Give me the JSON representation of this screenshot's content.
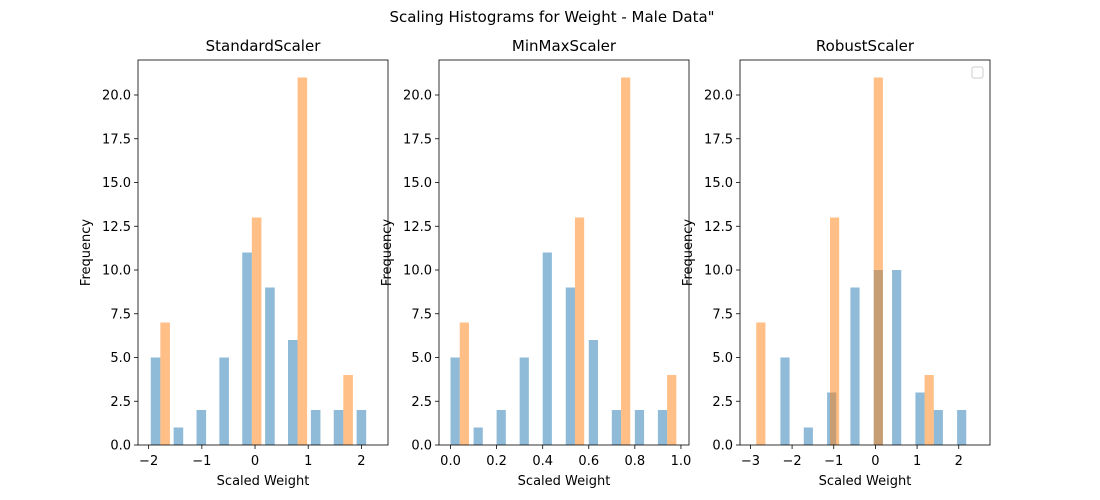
{
  "figure": {
    "suptitle": "Scaling Histograms for Weight - Male Data\""
  },
  "chart_data": [
    {
      "type": "bar",
      "title": "StandardScaler",
      "xlabel": "Scaled Weight",
      "ylabel": "Frequency",
      "xlim": [
        -2.2,
        2.5
      ],
      "ylim": [
        0,
        22
      ],
      "xticks": [
        -2,
        -1,
        0,
        1,
        2
      ],
      "xtick_labels": [
        "−2",
        "−1",
        "0",
        "1",
        "2"
      ],
      "yticks": [
        0,
        2.5,
        5,
        7.5,
        10,
        12.5,
        15,
        17.5,
        20
      ],
      "ytick_labels": [
        "0.0",
        "2.5",
        "5.0",
        "7.5",
        "10.0",
        "12.5",
        "15.0",
        "17.5",
        "20.0"
      ],
      "legend": false,
      "series": [
        {
          "color": "#1f77b4",
          "opacity": 0.5,
          "bars": [
            [
              -1.96,
              -1.78,
              5
            ],
            [
              -1.53,
              -1.35,
              1
            ],
            [
              -1.1,
              -0.92,
              2
            ],
            [
              -0.67,
              -0.49,
              5
            ],
            [
              -0.24,
              -0.06,
              11
            ],
            [
              0.19,
              0.37,
              9
            ],
            [
              0.62,
              0.8,
              6
            ],
            [
              1.05,
              1.23,
              2
            ],
            [
              1.48,
              1.66,
              2
            ],
            [
              1.91,
              2.09,
              2
            ]
          ]
        },
        {
          "color": "#ff7f0e",
          "opacity": 0.5,
          "bars": [
            [
              -1.78,
              -1.6,
              7
            ],
            [
              -0.06,
              0.12,
              13
            ],
            [
              0.8,
              0.98,
              21
            ],
            [
              1.66,
              1.84,
              4
            ]
          ]
        }
      ]
    },
    {
      "type": "bar",
      "title": "MinMaxScaler",
      "xlabel": "Scaled Weight",
      "ylabel": "Frequency",
      "xlim": [
        -0.05,
        1.035
      ],
      "ylim": [
        0,
        22
      ],
      "xticks": [
        0.0,
        0.2,
        0.4,
        0.6,
        0.8,
        1.0
      ],
      "xtick_labels": [
        "0.0",
        "0.2",
        "0.4",
        "0.6",
        "0.8",
        "1.0"
      ],
      "yticks": [
        0,
        2.5,
        5,
        7.5,
        10,
        12.5,
        15,
        17.5,
        20
      ],
      "ytick_labels": [
        "0.0",
        "2.5",
        "5.0",
        "7.5",
        "10.0",
        "12.5",
        "15.0",
        "17.5",
        "20.0"
      ],
      "legend": false,
      "series": [
        {
          "color": "#1f77b4",
          "opacity": 0.5,
          "bars": [
            [
              0.0,
              0.04,
              5
            ],
            [
              0.1,
              0.14,
              1
            ],
            [
              0.2,
              0.24,
              2
            ],
            [
              0.3,
              0.34,
              5
            ],
            [
              0.4,
              0.44,
              11
            ],
            [
              0.5,
              0.54,
              9
            ],
            [
              0.6,
              0.64,
              6
            ],
            [
              0.7,
              0.74,
              2
            ],
            [
              0.8,
              0.84,
              2
            ],
            [
              0.9,
              0.94,
              2
            ]
          ]
        },
        {
          "color": "#ff7f0e",
          "opacity": 0.5,
          "bars": [
            [
              0.04,
              0.08,
              7
            ],
            [
              0.54,
              0.58,
              13
            ],
            [
              0.74,
              0.78,
              21
            ],
            [
              0.94,
              0.98,
              4
            ]
          ]
        }
      ]
    },
    {
      "type": "bar",
      "title": "RobustScaler",
      "xlabel": "Scaled Weight",
      "ylabel": "Frequency",
      "xlim": [
        -3.25,
        2.75
      ],
      "ylim": [
        0,
        22
      ],
      "xticks": [
        -3,
        -2,
        -1,
        0,
        1,
        2
      ],
      "xtick_labels": [
        "−3",
        "−2",
        "−1",
        "0",
        "1",
        "2"
      ],
      "yticks": [
        0,
        2.5,
        5,
        7.5,
        10,
        12.5,
        15,
        17.5,
        20
      ],
      "ytick_labels": [
        "0.0",
        "2.5",
        "5.0",
        "7.5",
        "10.0",
        "12.5",
        "15.0",
        "17.5",
        "20.0"
      ],
      "legend": true,
      "legend_placement": "top-right",
      "series": [
        {
          "color": "#1f77b4",
          "opacity": 0.5,
          "bars": [
            [
              -2.28,
              -2.06,
              5
            ],
            [
              -1.72,
              -1.5,
              1
            ],
            [
              -1.16,
              -0.94,
              3
            ],
            [
              -0.6,
              -0.38,
              9
            ],
            [
              -0.04,
              0.18,
              10
            ],
            [
              0.4,
              0.62,
              10
            ],
            [
              0.96,
              1.18,
              3
            ],
            [
              1.4,
              1.62,
              2
            ],
            [
              1.96,
              2.18,
              2
            ]
          ]
        },
        {
          "color": "#ff7f0e",
          "opacity": 0.5,
          "bars": [
            [
              -2.86,
              -2.64,
              7
            ],
            [
              -1.09,
              -0.87,
              13
            ],
            [
              -0.04,
              0.18,
              21
            ],
            [
              1.18,
              1.4,
              4
            ]
          ]
        }
      ]
    }
  ]
}
